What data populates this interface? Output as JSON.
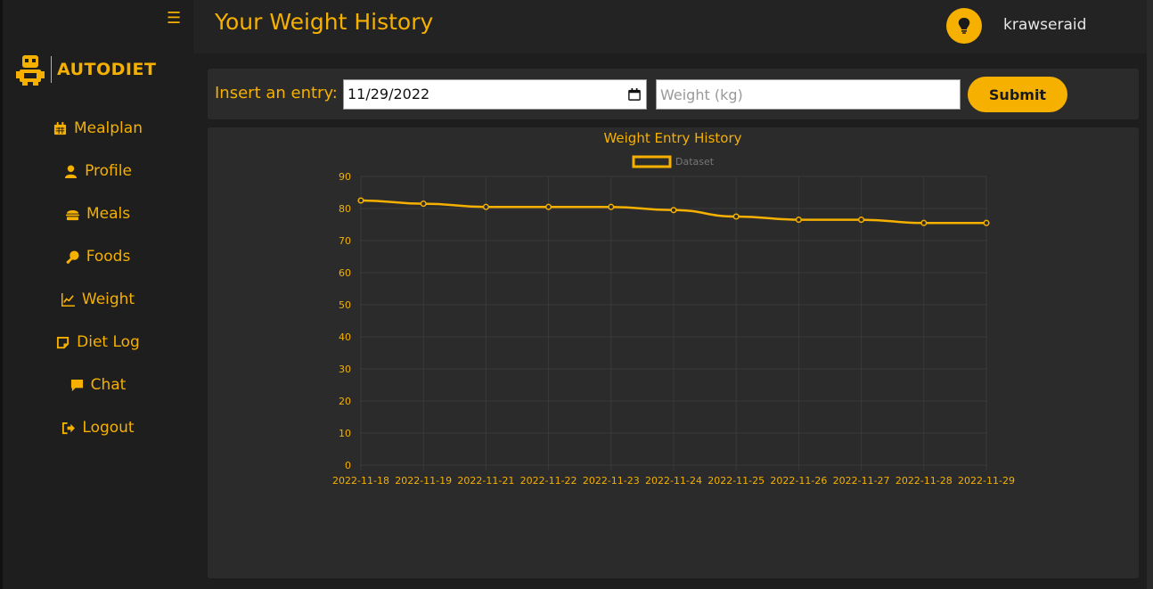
{
  "sidebar": {
    "logo_text": "AUTODIET",
    "items": [
      {
        "label": "Mealplan",
        "icon": "calendar-icon"
      },
      {
        "label": "Profile",
        "icon": "user-icon"
      },
      {
        "label": "Meals",
        "icon": "burger-icon"
      },
      {
        "label": "Foods",
        "icon": "drumstick-icon"
      },
      {
        "label": "Weight",
        "icon": "chart-line-icon"
      },
      {
        "label": "Diet Log",
        "icon": "note-icon"
      },
      {
        "label": "Chat",
        "icon": "comment-icon"
      },
      {
        "label": "Logout",
        "icon": "logout-icon"
      }
    ]
  },
  "header": {
    "title": "Your Weight History",
    "username": "krawseraid"
  },
  "entry_form": {
    "label": "Insert an entry:",
    "date_value": "11/29/2022",
    "weight_placeholder": "Weight (kg)",
    "submit_label": "Submit"
  },
  "colors": {
    "accent": "#f5b000",
    "background": "#1e1e1e",
    "card": "#2b2b2b"
  },
  "chart_data": {
    "type": "line",
    "title": "Weight Entry History",
    "x": [
      "2022-11-18",
      "2022-11-19",
      "2022-11-21",
      "2022-11-22",
      "2022-11-23",
      "2022-11-24",
      "2022-11-25",
      "2022-11-26",
      "2022-11-27",
      "2022-11-28",
      "2022-11-29"
    ],
    "series": [
      {
        "name": "Dataset",
        "values": [
          82.5,
          81.5,
          80.5,
          80.5,
          80.5,
          79.5,
          77.5,
          76.5,
          76.5,
          75.5,
          75.5
        ]
      }
    ],
    "yticks": [
      "0",
      "10",
      "20",
      "30",
      "40",
      "50",
      "60",
      "70",
      "80",
      "90"
    ],
    "ylim": [
      0,
      90
    ],
    "grid": true,
    "legend": "top-center"
  }
}
